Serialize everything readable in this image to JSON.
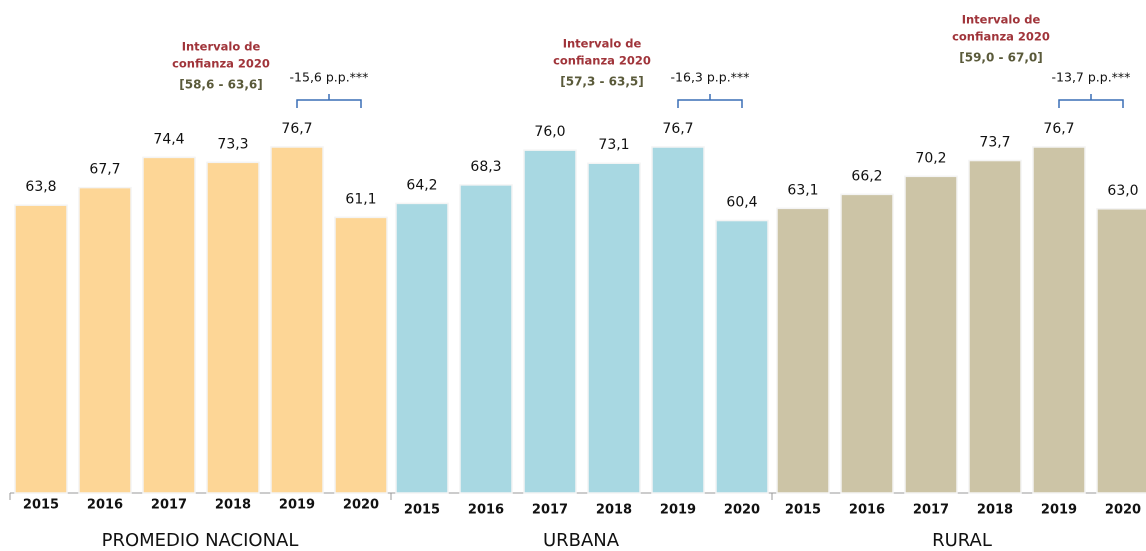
{
  "chart_data": [
    {
      "type": "bar",
      "xlabel": "PROMEDIO NACIONAL",
      "categories": [
        "2015",
        "2016",
        "2017",
        "2018",
        "2019",
        "2020"
      ],
      "values": [
        63.8,
        67.7,
        74.4,
        73.3,
        76.7,
        61.1
      ],
      "value_labels": [
        "63,8",
        "67,7",
        "74,4",
        "73,3",
        "76,7",
        "61,1"
      ],
      "color": "#fdd696",
      "annotations": [
        "Intervalo de",
        "confianza 2020",
        "[58,6 - 63,6]"
      ],
      "change_label": "-15,6 p.p.***"
    },
    {
      "type": "bar",
      "xlabel": "URBANA",
      "categories": [
        "2015",
        "2016",
        "2017",
        "2018",
        "2019",
        "2020"
      ],
      "values": [
        64.2,
        68.3,
        76.0,
        73.1,
        76.7,
        60.4
      ],
      "value_labels": [
        "64,2",
        "68,3",
        "76,0",
        "73,1",
        "76,7",
        "60,4"
      ],
      "color": "#a8d8e2",
      "annotations": [
        "Intervalo de",
        "confianza 2020",
        "[57,3 - 63,5]"
      ],
      "change_label": "-16,3 p.p.***"
    },
    {
      "type": "bar",
      "xlabel": "RURAL",
      "categories": [
        "2015",
        "2016",
        "2017",
        "2018",
        "2019",
        "2020"
      ],
      "values": [
        63.1,
        66.2,
        70.2,
        73.7,
        76.7,
        63.0
      ],
      "value_labels": [
        "63,1",
        "66,2",
        "70,2",
        "73,7",
        "76,7",
        "63,0"
      ],
      "color": "#ccc4a6",
      "annotations": [
        "Intervalo de",
        "confianza 2020",
        "[59,0 - 67,0]"
      ],
      "change_label": "-13,7 p.p.***"
    }
  ]
}
